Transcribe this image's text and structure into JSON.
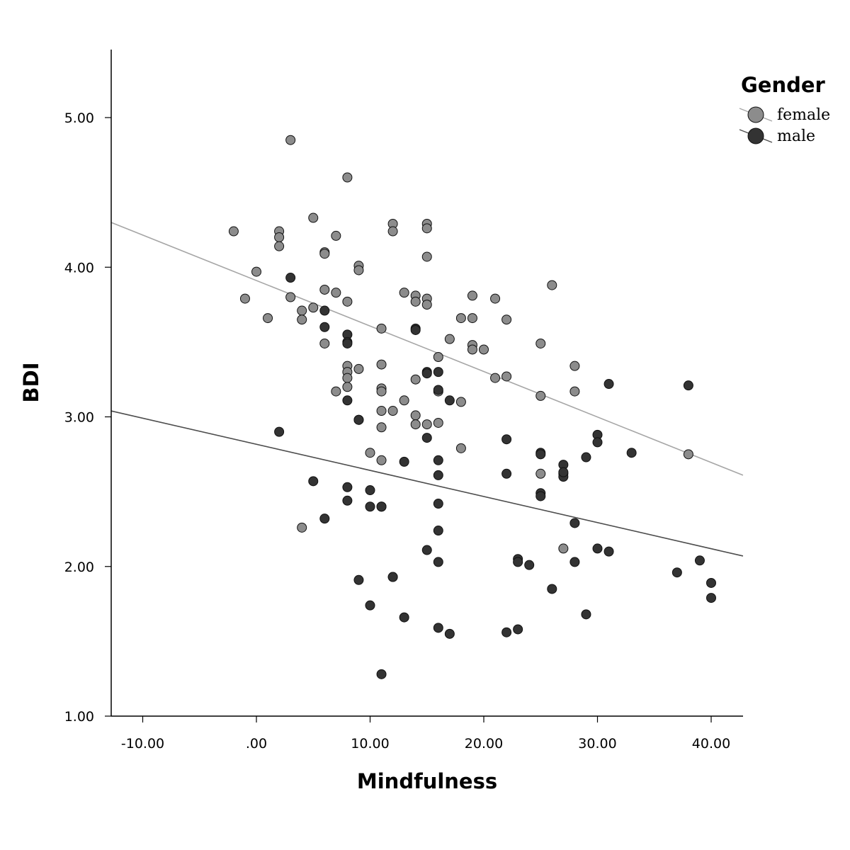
{
  "chart_data": {
    "type": "scatter",
    "title": "",
    "xlabel": "Mindfulness",
    "ylabel": "BDI",
    "xlim": [
      -12.8,
      42.8
    ],
    "ylim": [
      1.0,
      5.45
    ],
    "xticks": [
      -10,
      0,
      10,
      20,
      30,
      40
    ],
    "xtick_labels": [
      "-10.00",
      ".00",
      "10.00",
      "20.00",
      "30.00",
      "40.00"
    ],
    "yticks": [
      1,
      2,
      3,
      4,
      5
    ],
    "ytick_labels": [
      "1.00",
      "2.00",
      "3.00",
      "4.00",
      "5.00"
    ],
    "grid": false,
    "legend": {
      "title": "Gender",
      "position": "top-right"
    },
    "series": [
      {
        "name": "female",
        "color": "#8c8c8c",
        "fit_line": {
          "color": "#a6a6a6",
          "x": [
            -12.8,
            42.8
          ],
          "y": [
            4.3,
            2.61
          ]
        },
        "x": [
          -2,
          -1,
          0,
          1,
          2,
          2,
          2,
          3,
          3,
          4,
          4,
          5,
          5,
          6,
          6,
          6,
          6,
          7,
          7,
          7,
          8,
          8,
          8,
          8,
          8,
          8,
          9,
          9,
          9,
          10,
          11,
          11,
          11,
          11,
          11,
          11,
          11,
          12,
          12,
          12,
          13,
          13,
          14,
          14,
          14,
          14,
          14,
          15,
          15,
          15,
          15,
          15,
          15,
          16,
          16,
          16,
          17,
          18,
          18,
          18,
          19,
          19,
          19,
          19,
          20,
          21,
          21,
          22,
          22,
          25,
          25,
          25,
          26,
          27,
          28,
          28,
          38,
          4
        ],
        "y": [
          4.24,
          3.79,
          3.97,
          3.66,
          4.24,
          4.2,
          4.14,
          4.85,
          3.8,
          3.71,
          3.65,
          4.33,
          3.73,
          4.1,
          4.09,
          3.85,
          3.49,
          4.21,
          3.83,
          3.17,
          4.6,
          3.77,
          3.34,
          3.3,
          3.26,
          3.2,
          4.01,
          3.98,
          3.32,
          2.76,
          3.59,
          3.35,
          3.19,
          3.17,
          3.04,
          2.93,
          2.71,
          4.29,
          4.24,
          3.04,
          3.83,
          3.11,
          3.81,
          3.77,
          3.25,
          3.01,
          2.95,
          4.29,
          4.26,
          4.07,
          3.79,
          3.75,
          2.95,
          3.4,
          3.17,
          2.96,
          3.52,
          3.66,
          3.1,
          2.79,
          3.81,
          3.66,
          3.48,
          3.45,
          3.45,
          3.79,
          3.26,
          3.65,
          3.27,
          3.49,
          3.14,
          2.62,
          3.88,
          2.12,
          3.34,
          3.17,
          2.75,
          2.26
        ]
      },
      {
        "name": "male",
        "color": "#333333",
        "fit_line": {
          "color": "#4d4d4d",
          "x": [
            -12.8,
            42.8
          ],
          "y": [
            3.04,
            2.07
          ]
        },
        "x": [
          2,
          3,
          5,
          6,
          6,
          6,
          8,
          8,
          8,
          8,
          8,
          8,
          9,
          9,
          10,
          10,
          10,
          11,
          11,
          12,
          13,
          13,
          14,
          14,
          15,
          15,
          15,
          15,
          16,
          16,
          16,
          16,
          16,
          16,
          16,
          16,
          17,
          17,
          22,
          22,
          22,
          23,
          23,
          23,
          24,
          25,
          25,
          25,
          25,
          26,
          27,
          27,
          27,
          27,
          28,
          28,
          29,
          29,
          30,
          30,
          30,
          31,
          31,
          33,
          37,
          38,
          39,
          40,
          40,
          11,
          12,
          9
        ],
        "y": [
          2.9,
          3.93,
          2.57,
          3.71,
          3.6,
          2.32,
          3.55,
          3.5,
          3.11,
          2.53,
          2.44,
          3.49,
          2.98,
          1.91,
          2.51,
          2.4,
          1.74,
          2.4,
          1.28,
          1.93,
          2.7,
          1.66,
          3.59,
          3.58,
          3.3,
          3.29,
          2.11,
          2.86,
          3.3,
          3.18,
          2.71,
          2.61,
          2.42,
          2.24,
          2.03,
          1.59,
          3.11,
          1.55,
          2.85,
          2.62,
          1.56,
          2.05,
          2.03,
          1.58,
          2.01,
          2.76,
          2.49,
          2.47,
          2.75,
          1.85,
          2.68,
          2.62,
          2.6,
          2.63,
          2.29,
          2.03,
          2.73,
          1.68,
          2.88,
          2.83,
          2.12,
          3.22,
          2.1,
          2.76,
          1.96,
          3.21,
          2.04,
          1.89,
          1.79,
          2.4,
          1.93,
          2.98
        ]
      }
    ]
  }
}
